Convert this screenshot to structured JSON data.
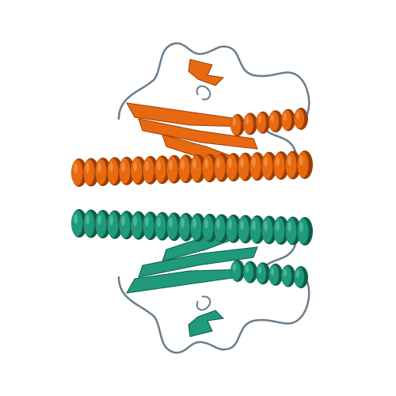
{
  "scene": {
    "background_color": "#ffffff",
    "subject": "protein-ribbon-dimer",
    "chains": [
      {
        "name": "chain-a",
        "color": "#e8690f",
        "shadow": "#9a3f06",
        "highlight": "#f59a52",
        "position": "top"
      },
      {
        "name": "chain-b",
        "color": "#1f9a7b",
        "shadow": "#0f5d49",
        "highlight": "#5cc3a6",
        "position": "bottom"
      }
    ],
    "loop_color": "#6b7d8c"
  }
}
